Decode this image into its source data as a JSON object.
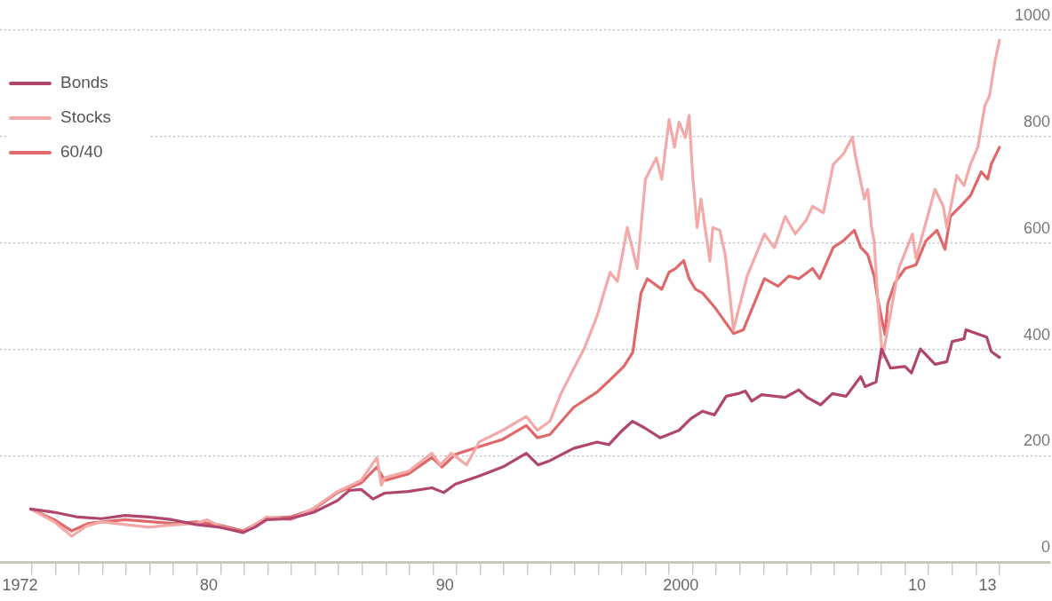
{
  "chart_data": {
    "type": "line",
    "legend": "top left",
    "grid": "y",
    "marker": "none",
    "line_style": "solid",
    "xlim": [
      1971.15,
      2015.65
    ],
    "xticks": [
      1972,
      {
        "value": 1972.5,
        "label": null
      },
      {
        "value": 1973.5,
        "label": null
      },
      {
        "value": 1974.5,
        "label": null
      },
      {
        "value": 1975.5,
        "label": null
      },
      {
        "value": 1976.5,
        "label": null
      },
      {
        "value": 1977.5,
        "label": null
      },
      {
        "value": 1978.5,
        "label": null
      },
      {
        "value": 1979.5,
        "label": null
      },
      {
        "value": 1980,
        "label": "80"
      },
      {
        "value": 1980.5,
        "label": null
      },
      {
        "value": 1981.5,
        "label": null
      },
      {
        "value": 1982.5,
        "label": null
      },
      {
        "value": 1983.5,
        "label": null
      },
      {
        "value": 1984.5,
        "label": null
      },
      {
        "value": 1985.5,
        "label": null
      },
      {
        "value": 1986.5,
        "label": null
      },
      {
        "value": 1987.5,
        "label": null
      },
      {
        "value": 1988.5,
        "label": null
      },
      {
        "value": 1989.5,
        "label": null
      },
      {
        "value": 1990,
        "label": "90"
      },
      {
        "value": 1990.5,
        "label": null
      },
      {
        "value": 1991.5,
        "label": null
      },
      {
        "value": 1992.5,
        "label": null
      },
      {
        "value": 1993.5,
        "label": null
      },
      {
        "value": 1994.5,
        "label": null
      },
      {
        "value": 1995.5,
        "label": null
      },
      {
        "value": 1996.5,
        "label": null
      },
      {
        "value": 1997.5,
        "label": null
      },
      {
        "value": 1998.5,
        "label": null
      },
      {
        "value": 1999.5,
        "label": null
      },
      2000,
      {
        "value": 2000.5,
        "label": null
      },
      {
        "value": 2001.5,
        "label": null
      },
      {
        "value": 2002.5,
        "label": null
      },
      {
        "value": 2003.5,
        "label": null
      },
      {
        "value": 2004.5,
        "label": null
      },
      {
        "value": 2005.5,
        "label": null
      },
      {
        "value": 2006.5,
        "label": null
      },
      {
        "value": 2007.5,
        "label": null
      },
      {
        "value": 2008.5,
        "label": null
      },
      {
        "value": 2009.5,
        "label": null
      },
      {
        "value": 2010,
        "label": "10"
      },
      {
        "value": 2010.5,
        "label": null
      },
      {
        "value": 2011.5,
        "label": null
      },
      {
        "value": 2012.5,
        "label": null
      },
      {
        "value": 2013,
        "label": "13"
      },
      {
        "value": 2013.5,
        "label": null
      }
    ],
    "ylim": [
      0,
      1000
    ],
    "yticks": [
      0,
      200,
      400,
      600,
      800,
      1000
    ],
    "series": [
      {
        "name": "Bonds",
        "color": "#b0456e",
        "x": [
          1972.45,
          1973.45,
          1974.45,
          1975.45,
          1976.45,
          1977.45,
          1978.45,
          1979.45,
          1980.45,
          1981.45,
          1981.95,
          1982.45,
          1983.45,
          1984.45,
          1985.45,
          1985.95,
          1986.45,
          1986.95,
          1987.45,
          1988.45,
          1989.45,
          1989.95,
          1990.45,
          1991.45,
          1992.45,
          1993.45,
          1993.95,
          1994.45,
          1995.45,
          1996.45,
          1996.95,
          1997.45,
          1997.95,
          1998.45,
          1999.12,
          1999.92,
          2000.42,
          2000.92,
          2001.42,
          2001.92,
          2002.42,
          2002.73,
          2003.0,
          2003.42,
          2004.42,
          2005.0,
          2005.35,
          2005.92,
          2006.42,
          2007.0,
          2007.62,
          2007.81,
          2008.27,
          2008.5,
          2008.88,
          2009.5,
          2009.77,
          2010.15,
          2010.77,
          2011.27,
          2011.5,
          2012.0,
          2012.08,
          2012.96,
          2013.15,
          2013.5
        ],
        "values": [
          100,
          94,
          85,
          82,
          88,
          85,
          80,
          71,
          66,
          56,
          66,
          80,
          82,
          94,
          116,
          135,
          137,
          119,
          130,
          133,
          140,
          131,
          147,
          162,
          179,
          205,
          183,
          191,
          214,
          226,
          221,
          245,
          265,
          253,
          234,
          248,
          270,
          284,
          277,
          312,
          317,
          322,
          303,
          315,
          310,
          324,
          310,
          296,
          317,
          312,
          349,
          330,
          339,
          401,
          365,
          368,
          356,
          401,
          372,
          377,
          415,
          420,
          437,
          423,
          396,
          385
        ]
      },
      {
        "name": "Stocks",
        "color": "#f2a9a7",
        "x": [
          1972.45,
          1973.45,
          1974.19,
          1974.81,
          1975.45,
          1976.45,
          1977.45,
          1978.45,
          1979.45,
          1979.92,
          1980.45,
          1981.45,
          1982.45,
          1983.45,
          1984.45,
          1985.45,
          1986.45,
          1987.12,
          1987.31,
          1987.45,
          1988.45,
          1989.45,
          1989.81,
          1990.27,
          1990.92,
          1991.45,
          1992.45,
          1993.45,
          1993.92,
          1994.45,
          1994.92,
          1995.45,
          1995.92,
          1996.45,
          1997.0,
          1997.31,
          1997.73,
          1998.15,
          1998.5,
          1998.96,
          1999.19,
          1999.5,
          1999.73,
          1999.92,
          2000.19,
          2000.35,
          2000.5,
          2000.69,
          2000.85,
          2001.23,
          2001.35,
          2001.65,
          2001.88,
          2002.08,
          2002.23,
          2002.81,
          2003.54,
          2003.96,
          2004.42,
          2004.85,
          2005.31,
          2005.58,
          2006.04,
          2006.46,
          2006.88,
          2007.27,
          2007.38,
          2007.77,
          2007.92,
          2008.08,
          2008.19,
          2008.35,
          2008.54,
          2009.23,
          2009.81,
          2009.96,
          2010.77,
          2011.12,
          2011.27,
          2011.69,
          2012.0,
          2012.27,
          2012.58,
          2012.88,
          2013.08,
          2013.31,
          2013.5
        ],
        "values": [
          100,
          76,
          49,
          68,
          76,
          71,
          66,
          70,
          73,
          80,
          68,
          56,
          85,
          80,
          102,
          133,
          154,
          197,
          145,
          159,
          171,
          205,
          183,
          205,
          183,
          226,
          248,
          274,
          248,
          265,
          317,
          363,
          403,
          463,
          545,
          528,
          629,
          552,
          720,
          760,
          720,
          832,
          780,
          827,
          798,
          840,
          727,
          629,
          683,
          566,
          629,
          624,
          578,
          500,
          437,
          538,
          617,
          591,
          650,
          617,
          643,
          669,
          657,
          748,
          767,
          799,
          767,
          683,
          701,
          629,
          604,
          487,
          385,
          552,
          617,
          571,
          701,
          669,
          629,
          727,
          708,
          748,
          780,
          858,
          877,
          942,
          981
        ]
      },
      {
        "name": "60/40",
        "color": "#e0676a",
        "x": [
          1972.45,
          1973.45,
          1974.19,
          1974.88,
          1976.45,
          1978.45,
          1979.5,
          1980.45,
          1981.45,
          1982.45,
          1983.45,
          1984.45,
          1985.45,
          1986.45,
          1987.12,
          1987.45,
          1988.45,
          1989.45,
          1989.88,
          1990.45,
          1991.45,
          1992.45,
          1993.45,
          1993.92,
          1994.45,
          1995.45,
          1996.45,
          1997.0,
          1997.58,
          1997.96,
          1998.31,
          1998.58,
          1999.19,
          1999.5,
          1999.77,
          2000.12,
          2000.35,
          2000.62,
          2000.92,
          2001.42,
          2002.23,
          2002.65,
          2003.54,
          2004.12,
          2004.58,
          2005.0,
          2005.58,
          2005.88,
          2006.46,
          2006.88,
          2007.35,
          2007.62,
          2007.92,
          2008.19,
          2008.35,
          2008.65,
          2008.77,
          2009.08,
          2009.5,
          2009.96,
          2010.38,
          2010.85,
          2011.19,
          2011.42,
          2011.85,
          2012.27,
          2012.73,
          2013.0,
          2013.15,
          2013.5
        ],
        "values": [
          100,
          80,
          59,
          73,
          80,
          73,
          76,
          70,
          59,
          83,
          85,
          100,
          131,
          149,
          179,
          154,
          166,
          197,
          179,
          203,
          217,
          231,
          257,
          234,
          240,
          291,
          320,
          343,
          368,
          394,
          506,
          533,
          513,
          545,
          552,
          567,
          533,
          513,
          506,
          480,
          430,
          437,
          533,
          519,
          538,
          533,
          552,
          533,
          592,
          604,
          624,
          592,
          578,
          538,
          492,
          428,
          487,
          526,
          552,
          559,
          604,
          624,
          588,
          650,
          669,
          689,
          734,
          720,
          748,
          780
        ]
      }
    ]
  }
}
